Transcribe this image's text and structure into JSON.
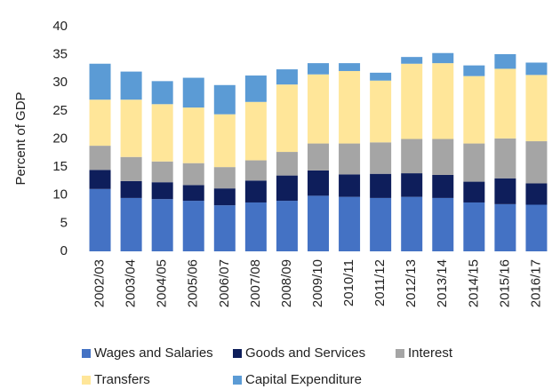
{
  "chart_data": {
    "type": "stacked_bar",
    "y_label": "Percent of GDP",
    "categories": [
      "2002/03",
      "2003/04",
      "2004/05",
      "2005/06",
      "2006/07",
      "2007/08",
      "2008/09",
      "2009/10",
      "2010/11",
      "2011/12",
      "2012/13",
      "2013/14",
      "2014/15",
      "2015/16",
      "2016/17"
    ],
    "series": [
      {
        "name": "Wages and Salaries",
        "color": "#4472c4",
        "values": [
          11.1,
          9.5,
          9.3,
          9.0,
          8.2,
          8.7,
          9.0,
          9.9,
          9.7,
          9.5,
          9.7,
          9.5,
          8.7,
          8.4,
          8.3
        ]
      },
      {
        "name": "Goods and Services",
        "color": "#0e1e5b",
        "values": [
          3.4,
          3.0,
          3.0,
          2.8,
          3.0,
          3.9,
          4.5,
          4.5,
          4.0,
          4.3,
          4.2,
          4.1,
          3.7,
          4.6,
          3.8
        ]
      },
      {
        "name": "Interest",
        "color": "#a5a5a5",
        "values": [
          4.3,
          4.3,
          3.7,
          3.9,
          3.8,
          3.6,
          4.2,
          4.8,
          5.5,
          5.6,
          6.1,
          6.4,
          6.8,
          7.1,
          7.5
        ]
      },
      {
        "name": "Transfers",
        "color": "#ffe699",
        "values": [
          8.2,
          10.2,
          10.2,
          9.9,
          9.4,
          10.4,
          12.0,
          12.3,
          12.9,
          11.0,
          13.4,
          13.5,
          12.0,
          12.4,
          11.8
        ]
      },
      {
        "name": "Capital Expenditure",
        "color": "#5b9bd5",
        "values": [
          6.4,
          5.0,
          4.1,
          5.3,
          5.2,
          4.7,
          2.7,
          2.0,
          1.4,
          1.4,
          1.2,
          1.8,
          1.9,
          2.6,
          2.2
        ]
      }
    ],
    "ylim": [
      0,
      40
    ],
    "yticks": [
      0,
      5,
      10,
      15,
      20,
      25,
      30,
      35,
      40
    ],
    "grid": false
  }
}
